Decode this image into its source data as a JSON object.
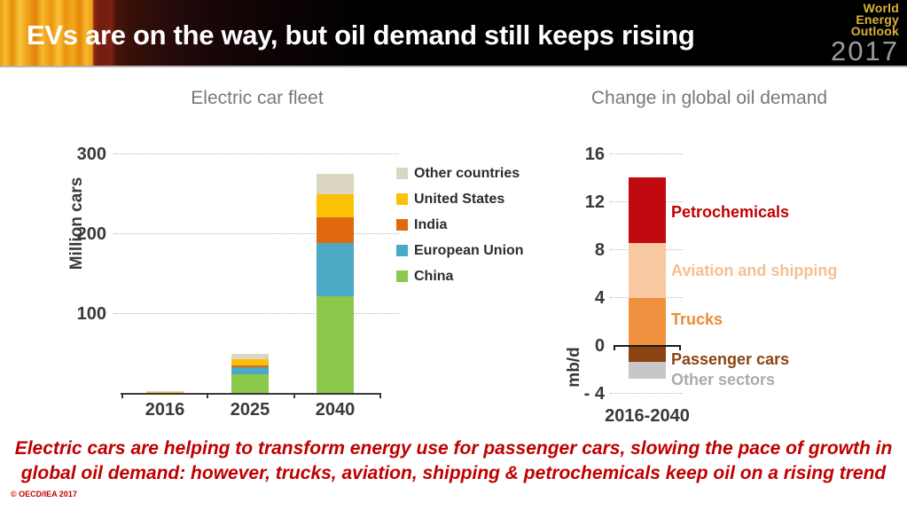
{
  "header": {
    "title": "EVs are on the way, but oil demand still keeps rising",
    "logo": {
      "line1": "World",
      "line2": "Energy",
      "line3": "Outlook",
      "year": "2017"
    }
  },
  "left_chart": {
    "title": "Electric car fleet",
    "ylabel": "Million cars",
    "yticks": [
      "300",
      "200",
      "100"
    ],
    "xticks": [
      "2016",
      "2025",
      "2040"
    ]
  },
  "right_chart": {
    "title": "Change in global oil demand",
    "ylabel": "mb/d",
    "yticks": [
      "16",
      "12",
      "8",
      "4",
      "0",
      "- 4"
    ],
    "xtick": "2016-2040"
  },
  "annotation": {
    "line1": "Electric cars are helping to transform energy use for passenger cars, slowing the pace of growth in",
    "line2": "global oil demand: however, trucks, aviation, shipping & petrochemicals keep oil on a rising trend",
    "color": "#c00000"
  },
  "copyright": "© OECD/IEA 2017",
  "chart_data": [
    {
      "type": "bar",
      "title": "Electric car fleet",
      "ylabel": "Million cars",
      "categories": [
        "2016",
        "2025",
        "2040"
      ],
      "stacked": true,
      "series": [
        {
          "name": "China",
          "color": "#8cc84b",
          "values": [
            1.0,
            24,
            122
          ]
        },
        {
          "name": "European Union",
          "color": "#4aa9c5",
          "values": [
            0.6,
            9,
            67
          ]
        },
        {
          "name": "India",
          "color": "#e0690e",
          "values": [
            0.1,
            3,
            32
          ]
        },
        {
          "name": "United States",
          "color": "#fcc107",
          "values": [
            0.6,
            7,
            29
          ]
        },
        {
          "name": "Other countries",
          "color": "#dbd6c2",
          "values": [
            1.2,
            7,
            26
          ]
        }
      ],
      "legend_order_top_to_bottom": [
        "Other countries",
        "United States",
        "India",
        "European Union",
        "China"
      ],
      "ylim": [
        0,
        300
      ],
      "ytick_interval": 100,
      "grid": "horizontal dotted"
    },
    {
      "type": "bar",
      "title": "Change in global oil demand",
      "ylabel": "mb/d",
      "categories": [
        "2016-2040"
      ],
      "stacked": true,
      "series": [
        {
          "name": "Trucks",
          "color": "#ef913e",
          "label_color": "#ee8b36",
          "values": [
            4.0
          ]
        },
        {
          "name": "Aviation and shipping",
          "color": "#f8c9a0",
          "label_color": "#f6bf92",
          "values": [
            4.6
          ]
        },
        {
          "name": "Petrochemicals",
          "color": "#c00a0f",
          "label_color": "#c00000",
          "values": [
            5.5
          ]
        },
        {
          "name": "Passenger cars",
          "color": "#8a4412",
          "label_color": "#8a4412",
          "values": [
            -1.3
          ]
        },
        {
          "name": "Other sectors",
          "color": "#c7c7c7",
          "label_color": "#ababab",
          "values": [
            -1.45
          ]
        }
      ],
      "ylim": [
        -4,
        16
      ],
      "ytick_interval": 4,
      "grid": "horizontal dotted"
    }
  ]
}
